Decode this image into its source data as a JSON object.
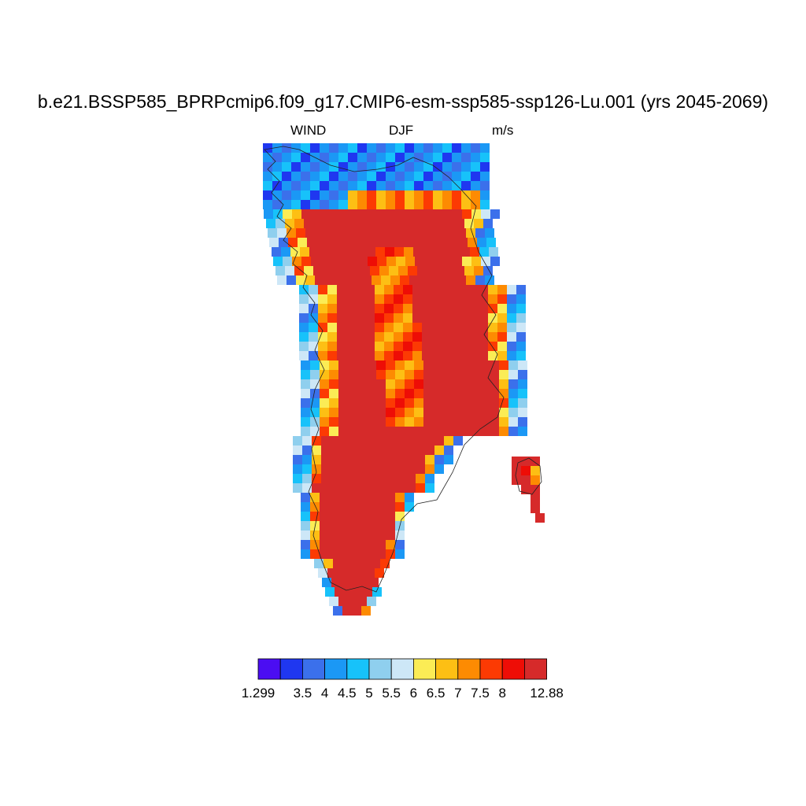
{
  "title": "b.e21.BSSP585_BPRPcmip6.f09_g17.CMIP6-esm-ssp585-ssp126-Lu.001 (yrs 2045-2069)",
  "subtitle_left": "WIND",
  "subtitle_center": "DJF",
  "subtitle_right": "m/s",
  "colorbar": {
    "colors": [
      "#4b0df2",
      "#1f37f0",
      "#3b70eb",
      "#1b98f5",
      "#17c2fa",
      "#8fcfee",
      "#cde7f7",
      "#fbec55",
      "#fdbf14",
      "#fd8b02",
      "#fc3a03",
      "#ee0d06",
      "#d62a2a"
    ],
    "labels": [
      "1.299",
      "3.5",
      "4",
      "4.5",
      "5",
      "5.5",
      "6",
      "6.5",
      "7",
      "7.5",
      "8",
      "12.88"
    ],
    "label_boundaries": [
      0,
      2,
      3,
      4,
      5,
      6,
      7,
      8,
      9,
      10,
      11,
      13
    ]
  },
  "map": {
    "region": "Greenland",
    "field": "wind speed",
    "units": "m/s",
    "season": "DJF",
    "pattern": "Strongest winds (above 8 m/s) across the ice-sheet interior, a 6.5–8 m/s ridge along the central spine, weaker 1.3–6 m/s winds along the western and northern coastal fringes"
  }
}
